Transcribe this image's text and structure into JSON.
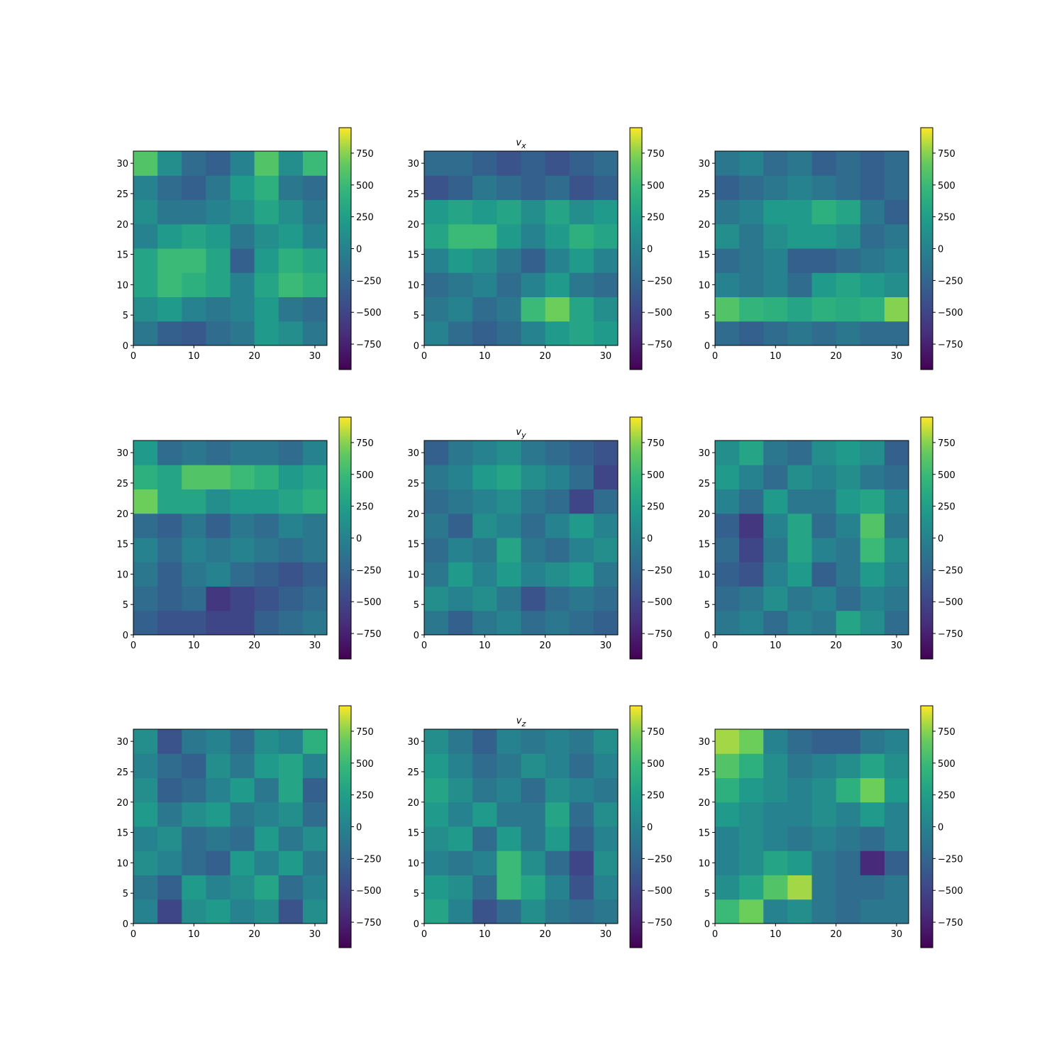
{
  "chart_data": [
    {
      "type": "heatmap",
      "colormap": "viridis",
      "xlim": [
        0,
        32
      ],
      "ylim": [
        0,
        32
      ],
      "xticks": [
        0,
        10,
        20,
        30
      ],
      "yticks": [
        0,
        5,
        10,
        15,
        20,
        25,
        30
      ],
      "x_edges": [
        0,
        4,
        8,
        12,
        16,
        20,
        24,
        28,
        32
      ],
      "y_edges": [
        0,
        4,
        8,
        12,
        16,
        20,
        24,
        28,
        32
      ],
      "clim": [
        -950,
        950
      ],
      "cticks": [
        {
          "value": -750,
          "label": "−750"
        },
        {
          "value": -500,
          "label": "−500"
        },
        {
          "value": -250,
          "label": "−250"
        },
        0,
        250,
        500,
        750
      ],
      "z": [
        [
          -100,
          -300,
          -350,
          -200,
          -100,
          200,
          100,
          -100
        ],
        [
          100,
          200,
          0,
          -100,
          0,
          200,
          -100,
          -200
        ],
        [
          300,
          500,
          400,
          300,
          0,
          300,
          500,
          400
        ],
        [
          300,
          500,
          500,
          300,
          -300,
          200,
          400,
          300
        ],
        [
          0,
          200,
          300,
          200,
          -100,
          100,
          200,
          0
        ],
        [
          100,
          -100,
          -100,
          0,
          100,
          300,
          100,
          -100
        ],
        [
          0,
          -200,
          -300,
          -100,
          200,
          400,
          -100,
          -200
        ],
        [
          600,
          100,
          -200,
          -300,
          0,
          600,
          100,
          500
        ]
      ]
    },
    {
      "type": "heatmap",
      "colormap": "viridis",
      "title": "v",
      "title_subscript": "x",
      "xlim": [
        0,
        32
      ],
      "ylim": [
        0,
        32
      ],
      "xticks": [
        0,
        10,
        20,
        30
      ],
      "yticks": [
        0,
        5,
        10,
        15,
        20,
        25,
        30
      ],
      "x_edges": [
        0,
        4,
        8,
        12,
        16,
        20,
        24,
        28,
        32
      ],
      "y_edges": [
        0,
        4,
        8,
        12,
        16,
        20,
        24,
        28,
        32
      ],
      "clim": [
        -950,
        950
      ],
      "cticks": [
        {
          "value": -750,
          "label": "−750"
        },
        {
          "value": -500,
          "label": "−500"
        },
        {
          "value": -250,
          "label": "−250"
        },
        0,
        250,
        500,
        750
      ],
      "z": [
        [
          0,
          -200,
          -300,
          -200,
          0,
          200,
          300,
          200
        ],
        [
          -100,
          0,
          -200,
          -100,
          500,
          700,
          300,
          100
        ],
        [
          -200,
          -100,
          0,
          -200,
          0,
          200,
          -100,
          -200
        ],
        [
          0,
          200,
          100,
          -100,
          -300,
          0,
          200,
          0
        ],
        [
          300,
          500,
          500,
          200,
          0,
          200,
          400,
          300
        ],
        [
          200,
          300,
          200,
          300,
          100,
          300,
          100,
          200
        ],
        [
          -400,
          -300,
          -100,
          -200,
          -300,
          -200,
          -400,
          -300
        ],
        [
          -200,
          -200,
          -300,
          -400,
          -300,
          -400,
          -300,
          -200
        ]
      ]
    },
    {
      "type": "heatmap",
      "colormap": "viridis",
      "xlim": [
        0,
        32
      ],
      "ylim": [
        0,
        32
      ],
      "xticks": [
        0,
        10,
        20,
        30
      ],
      "yticks": [
        0,
        5,
        10,
        15,
        20,
        25,
        30
      ],
      "x_edges": [
        0,
        4,
        8,
        12,
        16,
        20,
        24,
        28,
        32
      ],
      "y_edges": [
        0,
        4,
        8,
        12,
        16,
        20,
        24,
        28,
        32
      ],
      "clim": [
        -950,
        950
      ],
      "cticks": [
        {
          "value": -750,
          "label": "−750"
        },
        {
          "value": -500,
          "label": "−500"
        },
        {
          "value": -250,
          "label": "−250"
        },
        0,
        250,
        500,
        750
      ],
      "z": [
        [
          -200,
          -300,
          -200,
          -100,
          -200,
          -100,
          -200,
          -200
        ],
        [
          600,
          450,
          400,
          300,
          400,
          350,
          400,
          750
        ],
        [
          0,
          -100,
          0,
          -200,
          200,
          300,
          200,
          100
        ],
        [
          -200,
          -100,
          0,
          -300,
          -300,
          -200,
          -100,
          0
        ],
        [
          100,
          -100,
          100,
          200,
          200,
          100,
          -200,
          -100
        ],
        [
          -100,
          0,
          200,
          200,
          400,
          300,
          -100,
          -300
        ],
        [
          -300,
          -200,
          -100,
          0,
          -100,
          -200,
          -300,
          -200
        ],
        [
          -100,
          0,
          -200,
          -100,
          -300,
          -200,
          -300,
          -200
        ]
      ]
    },
    {
      "type": "heatmap",
      "colormap": "viridis",
      "xlim": [
        0,
        32
      ],
      "ylim": [
        0,
        32
      ],
      "xticks": [
        0,
        10,
        20,
        30
      ],
      "yticks": [
        0,
        5,
        10,
        15,
        20,
        25,
        30
      ],
      "x_edges": [
        0,
        4,
        8,
        12,
        16,
        20,
        24,
        28,
        32
      ],
      "y_edges": [
        0,
        4,
        8,
        12,
        16,
        20,
        24,
        28,
        32
      ],
      "clim": [
        -950,
        950
      ],
      "cticks": [
        {
          "value": -750,
          "label": "−750"
        },
        {
          "value": -500,
          "label": "−500"
        },
        {
          "value": -250,
          "label": "−250"
        },
        0,
        250,
        500,
        750
      ],
      "z": [
        [
          -300,
          -400,
          -400,
          -500,
          -500,
          -300,
          -200,
          -100
        ],
        [
          -200,
          -300,
          -200,
          -600,
          -500,
          -400,
          -300,
          -200
        ],
        [
          -100,
          -300,
          -100,
          0,
          -200,
          -300,
          -400,
          -300
        ],
        [
          0,
          -200,
          0,
          -100,
          0,
          -100,
          -200,
          -100
        ],
        [
          -200,
          -300,
          -100,
          -300,
          -100,
          -200,
          0,
          -100
        ],
        [
          700,
          300,
          300,
          100,
          200,
          200,
          300,
          400
        ],
        [
          400,
          300,
          600,
          600,
          500,
          400,
          200,
          300
        ],
        [
          200,
          -200,
          -100,
          -200,
          -100,
          -100,
          -200,
          0
        ]
      ]
    },
    {
      "type": "heatmap",
      "colormap": "viridis",
      "title": "v",
      "title_subscript": "y",
      "xlim": [
        0,
        32
      ],
      "ylim": [
        0,
        32
      ],
      "xticks": [
        0,
        10,
        20,
        30
      ],
      "yticks": [
        0,
        5,
        10,
        15,
        20,
        25,
        30
      ],
      "x_edges": [
        0,
        4,
        8,
        12,
        16,
        20,
        24,
        28,
        32
      ],
      "y_edges": [
        0,
        4,
        8,
        12,
        16,
        20,
        24,
        28,
        32
      ],
      "clim": [
        -950,
        950
      ],
      "cticks": [
        {
          "value": -750,
          "label": "−750"
        },
        {
          "value": -500,
          "label": "−500"
        },
        {
          "value": -250,
          "label": "−250"
        },
        0,
        250,
        500,
        750
      ],
      "z": [
        [
          -100,
          -300,
          -100,
          0,
          -200,
          -100,
          -200,
          -300
        ],
        [
          100,
          0,
          100,
          -100,
          -400,
          -200,
          -100,
          -200
        ],
        [
          -100,
          200,
          0,
          200,
          0,
          100,
          200,
          -100
        ],
        [
          -200,
          0,
          -100,
          300,
          -100,
          -200,
          0,
          100
        ],
        [
          -100,
          -300,
          100,
          0,
          -200,
          0,
          200,
          0
        ],
        [
          -200,
          -100,
          0,
          100,
          -100,
          -200,
          -500,
          -200
        ],
        [
          -100,
          0,
          200,
          300,
          100,
          0,
          -200,
          -500
        ],
        [
          -300,
          -100,
          0,
          100,
          -100,
          -200,
          -300,
          -400
        ]
      ]
    },
    {
      "type": "heatmap",
      "colormap": "viridis",
      "xlim": [
        0,
        32
      ],
      "ylim": [
        0,
        32
      ],
      "xticks": [
        0,
        10,
        20,
        30
      ],
      "yticks": [
        0,
        5,
        10,
        15,
        20,
        25,
        30
      ],
      "x_edges": [
        0,
        4,
        8,
        12,
        16,
        20,
        24,
        28,
        32
      ],
      "y_edges": [
        0,
        4,
        8,
        12,
        16,
        20,
        24,
        28,
        32
      ],
      "clim": [
        -950,
        950
      ],
      "cticks": [
        {
          "value": -750,
          "label": "−750"
        },
        {
          "value": -500,
          "label": "−500"
        },
        {
          "value": -250,
          "label": "−250"
        },
        0,
        250,
        500,
        750
      ],
      "z": [
        [
          -100,
          0,
          -200,
          0,
          -100,
          300,
          100,
          -200
        ],
        [
          -200,
          -100,
          100,
          -100,
          0,
          -200,
          0,
          -100
        ],
        [
          -300,
          -400,
          0,
          200,
          -300,
          -100,
          200,
          0
        ],
        [
          -200,
          -500,
          -100,
          300,
          0,
          -100,
          500,
          100
        ],
        [
          -300,
          -600,
          0,
          300,
          -200,
          0,
          600,
          -100
        ],
        [
          0,
          -200,
          200,
          -100,
          -100,
          200,
          300,
          0
        ],
        [
          200,
          0,
          -200,
          100,
          0,
          100,
          -100,
          -200
        ],
        [
          100,
          300,
          -100,
          -200,
          100,
          200,
          100,
          -300
        ]
      ]
    },
    {
      "type": "heatmap",
      "colormap": "viridis",
      "xlim": [
        0,
        32
      ],
      "ylim": [
        0,
        32
      ],
      "xticks": [
        0,
        10,
        20,
        30
      ],
      "yticks": [
        0,
        5,
        10,
        15,
        20,
        25,
        30
      ],
      "x_edges": [
        0,
        4,
        8,
        12,
        16,
        20,
        24,
        28,
        32
      ],
      "y_edges": [
        0,
        4,
        8,
        12,
        16,
        20,
        24,
        28,
        32
      ],
      "clim": [
        -950,
        950
      ],
      "cticks": [
        {
          "value": -750,
          "label": "−750"
        },
        {
          "value": -500,
          "label": "−500"
        },
        {
          "value": -250,
          "label": "−250"
        },
        0,
        250,
        500,
        750
      ],
      "z": [
        [
          0,
          -500,
          100,
          200,
          0,
          100,
          -400,
          100
        ],
        [
          -100,
          -300,
          200,
          0,
          100,
          300,
          -200,
          0
        ],
        [
          100,
          0,
          -200,
          -300,
          200,
          0,
          200,
          -100
        ],
        [
          0,
          100,
          -200,
          -100,
          -200,
          200,
          -100,
          100
        ],
        [
          200,
          -100,
          100,
          200,
          -100,
          0,
          100,
          -200
        ],
        [
          100,
          -300,
          -200,
          0,
          200,
          -100,
          300,
          -300
        ],
        [
          0,
          -200,
          -300,
          100,
          -100,
          200,
          300,
          0
        ],
        [
          100,
          -400,
          -100,
          0,
          -200,
          100,
          0,
          400
        ]
      ]
    },
    {
      "type": "heatmap",
      "colormap": "viridis",
      "title": "v",
      "title_subscript": "z",
      "xlim": [
        0,
        32
      ],
      "ylim": [
        0,
        32
      ],
      "xticks": [
        0,
        10,
        20,
        30
      ],
      "yticks": [
        0,
        5,
        10,
        15,
        20,
        25,
        30
      ],
      "x_edges": [
        0,
        4,
        8,
        12,
        16,
        20,
        24,
        28,
        32
      ],
      "y_edges": [
        0,
        4,
        8,
        12,
        16,
        20,
        24,
        28,
        32
      ],
      "clim": [
        -950,
        950
      ],
      "cticks": [
        {
          "value": -750,
          "label": "−750"
        },
        {
          "value": -500,
          "label": "−500"
        },
        {
          "value": -250,
          "label": "−250"
        },
        0,
        250,
        500,
        750
      ],
      "z": [
        [
          300,
          0,
          -400,
          -200,
          100,
          -100,
          -200,
          -100
        ],
        [
          200,
          100,
          -200,
          500,
          300,
          0,
          -400,
          0
        ],
        [
          0,
          -100,
          0,
          500,
          100,
          -200,
          -500,
          100
        ],
        [
          100,
          200,
          -200,
          200,
          -100,
          200,
          -300,
          0
        ],
        [
          200,
          0,
          200,
          -100,
          -100,
          300,
          -200,
          100
        ],
        [
          300,
          100,
          -100,
          0,
          -200,
          100,
          0,
          -100
        ],
        [
          200,
          0,
          -200,
          -100,
          100,
          0,
          -200,
          0
        ],
        [
          100,
          -100,
          -300,
          0,
          -100,
          0,
          -100,
          100
        ]
      ]
    },
    {
      "type": "heatmap",
      "colormap": "viridis",
      "xlim": [
        0,
        32
      ],
      "ylim": [
        0,
        32
      ],
      "xticks": [
        0,
        10,
        20,
        30
      ],
      "yticks": [
        0,
        5,
        10,
        15,
        20,
        25,
        30
      ],
      "x_edges": [
        0,
        4,
        8,
        12,
        16,
        20,
        24,
        28,
        32
      ],
      "y_edges": [
        0,
        4,
        8,
        12,
        16,
        20,
        24,
        28,
        32
      ],
      "clim": [
        -950,
        950
      ],
      "cticks": [
        {
          "value": -750,
          "label": "−750"
        },
        {
          "value": -500,
          "label": "−500"
        },
        {
          "value": -250,
          "label": "−250"
        },
        0,
        250,
        500,
        750
      ],
      "z": [
        [
          500,
          700,
          0,
          100,
          -100,
          -200,
          -100,
          -100
        ],
        [
          100,
          300,
          600,
          800,
          -100,
          -200,
          -200,
          -100
        ],
        [
          0,
          100,
          300,
          200,
          -100,
          -200,
          -700,
          -300
        ],
        [
          0,
          100,
          0,
          -100,
          0,
          -100,
          -200,
          0
        ],
        [
          200,
          100,
          0,
          0,
          100,
          0,
          200,
          0
        ],
        [
          400,
          200,
          100,
          0,
          100,
          400,
          700,
          200
        ],
        [
          600,
          400,
          100,
          -100,
          0,
          100,
          300,
          100
        ],
        [
          800,
          700,
          0,
          -200,
          -300,
          -300,
          -100,
          0
        ]
      ]
    }
  ]
}
